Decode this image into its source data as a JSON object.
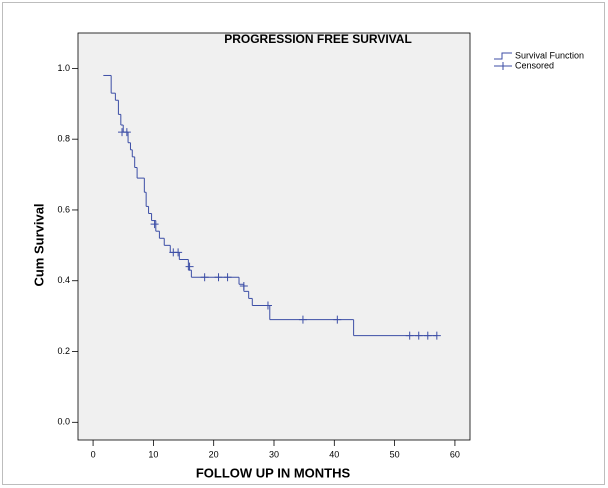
{
  "chart_data": {
    "type": "line",
    "title": "PROGRESSION FREE SURVIVAL",
    "x_label": "FOLLOW UP IN MONTHS",
    "y_label": "Cum Survival",
    "xlim": [
      -2.5,
      62.5
    ],
    "ylim": [
      -0.05,
      1.1
    ],
    "xticks": [
      0,
      10,
      20,
      30,
      40,
      50,
      60
    ],
    "yticks": [
      {
        "value": 0,
        "label": "0.0"
      },
      0.2,
      0.4,
      0.6,
      0.8,
      {
        "value": 1,
        "label": "1.0"
      }
    ],
    "grid": false,
    "legend": "outside-top-right",
    "series": [
      {
        "name": "Survival Function",
        "color": "#3c4ea6",
        "style": "step",
        "x": [
          1.7,
          3.0,
          3.7,
          4.2,
          4.6,
          5.0,
          5.8,
          6.2,
          6.5,
          6.9,
          7.3,
          8.5,
          8.8,
          9.2,
          9.7,
          10.4,
          11.0,
          11.8,
          12.8,
          14.3,
          15.8,
          16.3,
          24.2,
          25.0,
          25.8,
          26.4,
          29.3,
          43.2,
          57.0
        ],
        "values": [
          0.98,
          0.93,
          0.91,
          0.87,
          0.84,
          0.82,
          0.79,
          0.77,
          0.75,
          0.72,
          0.69,
          0.65,
          0.61,
          0.59,
          0.57,
          0.54,
          0.52,
          0.5,
          0.48,
          0.46,
          0.43,
          0.41,
          0.39,
          0.37,
          0.35,
          0.33,
          0.29,
          0.245,
          0.245
        ]
      },
      {
        "name": "Censored",
        "color": "#3c4ea6",
        "style": "cross",
        "x": [
          4.8,
          5.6,
          10.2,
          13.3,
          14.1,
          16.0,
          18.5,
          20.8,
          22.3,
          25.0,
          29.0,
          34.8,
          40.5,
          52.5,
          54.0,
          55.5,
          57.0
        ],
        "values": [
          0.82,
          0.82,
          0.56,
          0.48,
          0.48,
          0.44,
          0.41,
          0.41,
          0.41,
          0.385,
          0.33,
          0.29,
          0.29,
          0.245,
          0.245,
          0.245,
          0.245
        ]
      }
    ]
  }
}
